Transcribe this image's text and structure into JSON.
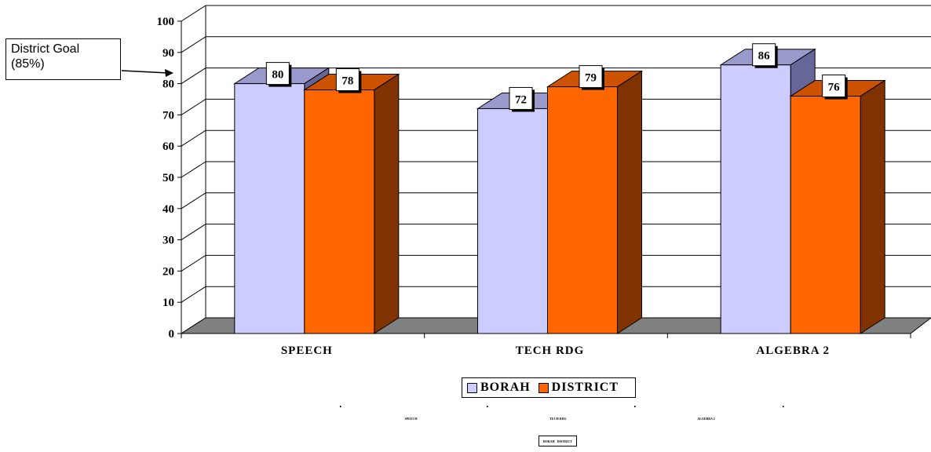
{
  "callout": {
    "line1": "District Goal",
    "line2": "(85%)"
  },
  "colors": {
    "borah_front": "#ccccff",
    "borah_top": "#9999cc",
    "borah_side": "#666699",
    "district_front": "#ff6600",
    "district_top": "#cc5200",
    "district_side": "#803300",
    "floor": "#808080"
  },
  "chart_data": {
    "type": "bar",
    "categories": [
      "SPEECH",
      "TECH RDG",
      "ALGEBRA 2"
    ],
    "series": [
      {
        "name": "BORAH",
        "values": [
          80,
          72,
          86
        ]
      },
      {
        "name": "DISTRICT",
        "values": [
          78,
          79,
          76
        ]
      }
    ],
    "ylim": [
      0,
      100
    ],
    "yticks": [
      0,
      10,
      20,
      30,
      40,
      50,
      60,
      70,
      80,
      90,
      100
    ],
    "grid": true,
    "legend_position": "bottom",
    "style": "3d-clustered-column"
  }
}
